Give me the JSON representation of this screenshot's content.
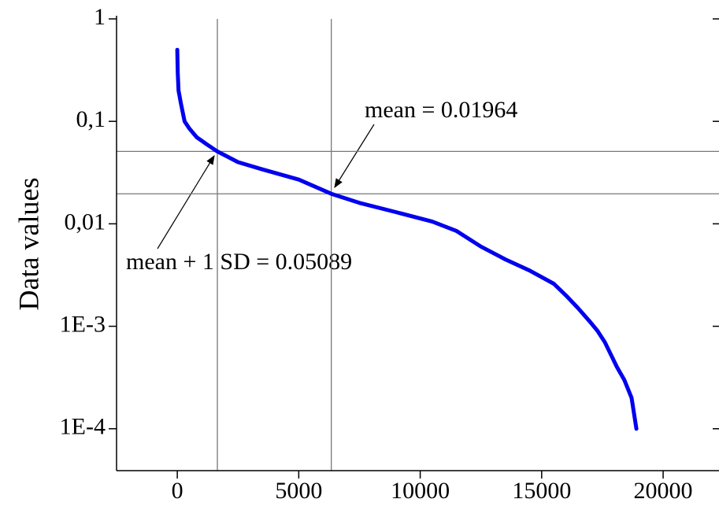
{
  "chart_data": {
    "type": "line",
    "y_label": "Data values",
    "log_y": true,
    "color": "#0000ee",
    "x": [
      0,
      20,
      50,
      150,
      300,
      500,
      800,
      1200,
      1650,
      2500,
      3500,
      5000,
      6340,
      7500,
      9000,
      10500,
      11500,
      12500,
      13500,
      14500,
      15500,
      16000,
      16500,
      17000,
      17300,
      17600,
      17900,
      18100,
      18400,
      18700,
      18900
    ],
    "values": [
      0.5,
      0.3,
      0.2,
      0.15,
      0.1,
      0.085,
      0.07,
      0.06,
      0.05089,
      0.04,
      0.034,
      0.027,
      0.01964,
      0.016,
      0.013,
      0.0105,
      0.0085,
      0.006,
      0.0045,
      0.0035,
      0.0026,
      0.002,
      0.0015,
      0.0011,
      0.0009,
      0.0007,
      0.0005,
      0.0004,
      0.0003,
      0.0002,
      0.0001
    ],
    "xlim": [
      -2500,
      22300
    ],
    "xticks": [
      0,
      5000,
      10000,
      15000,
      20000
    ],
    "ylim": [
      3.9e-05,
      1
    ],
    "yticks": [
      1,
      {
        "value": 0.1,
        "label": "0,1"
      },
      {
        "value": 0.01,
        "label": "0,01"
      },
      {
        "value": 0.001,
        "label": "1E-3"
      },
      {
        "value": 0.0001,
        "label": "1E-4"
      }
    ],
    "reference_lines": {
      "x": [
        1650,
        6340
      ],
      "y": [
        0.05089,
        0.01964
      ]
    },
    "annotations": [
      "mean = 0.01964",
      "mean + 1 SD = 0.05089"
    ]
  }
}
